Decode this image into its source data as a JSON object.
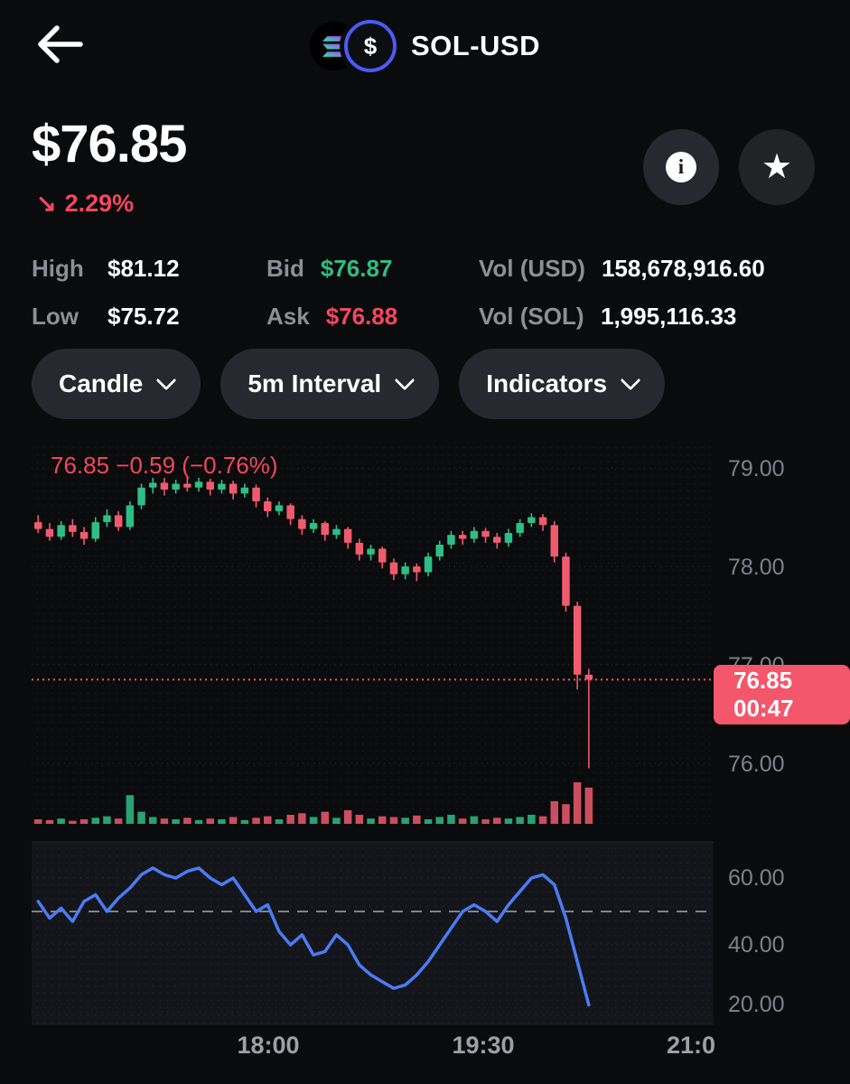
{
  "colors": {
    "background": "#0a0b0d",
    "green": "#2ebd85",
    "red": "#ef5b6d",
    "accent_red": "#f4475f",
    "tag_bg": "#f4566b",
    "rsi_line": "#4b7bf5",
    "pill_bg": "#26292f"
  },
  "header": {
    "title": "SOL-USD",
    "dollar_glyph": "$"
  },
  "price_section": {
    "price": "$76.85",
    "change": "2.29%",
    "change_arrow": "↘",
    "info_glyph": "i",
    "star_glyph": "★"
  },
  "stats": {
    "rows": [
      {
        "c1l": "High",
        "c1v": "$81.12",
        "c2l": "Bid",
        "c2v": "$76.87",
        "c3l": "Vol (USD)",
        "c3v": "158,678,916.60"
      },
      {
        "c1l": "Low",
        "c1v": "$75.72",
        "c2l": "Ask",
        "c2v": "$76.88",
        "c3l": "Vol (SOL)",
        "c3v": "1,995,116.33"
      }
    ]
  },
  "toolbar": {
    "candle": "Candle",
    "interval": "5m Interval",
    "indicators": "Indicators"
  },
  "chart_data": {
    "type": "candlestick",
    "pair": "SOL-USD",
    "interval": "5m",
    "legend": "76.85 −0.59 (−0.76%)",
    "current_price": 76.85,
    "last_price_label": "76.85",
    "countdown": "00:47",
    "price_axis_ticks": [
      "79.00",
      "78.00",
      "77.00",
      "76.00"
    ],
    "price_axis_values": [
      79,
      78,
      77,
      76
    ],
    "time_axis_ticks": [
      "18:00",
      "19:30",
      "21:0"
    ],
    "rsi_axis_ticks": [
      "60.00",
      "40.00",
      "20.00"
    ],
    "rsi_axis_values": [
      60,
      40,
      20
    ],
    "rsi_midline": 50,
    "candles": [
      [
        78.45,
        78.52,
        78.34,
        78.38
      ],
      [
        78.38,
        78.44,
        78.26,
        78.3
      ],
      [
        78.3,
        78.46,
        78.27,
        78.42
      ],
      [
        78.42,
        78.48,
        78.3,
        78.35
      ],
      [
        78.35,
        78.4,
        78.22,
        78.28
      ],
      [
        78.28,
        78.5,
        78.25,
        78.45
      ],
      [
        78.45,
        78.58,
        78.4,
        78.52
      ],
      [
        78.52,
        78.56,
        78.36,
        78.4
      ],
      [
        78.4,
        78.66,
        78.37,
        78.62
      ],
      [
        78.62,
        78.84,
        78.58,
        78.8
      ],
      [
        78.8,
        78.9,
        78.74,
        78.85
      ],
      [
        78.85,
        78.9,
        78.72,
        78.78
      ],
      [
        78.78,
        78.88,
        78.74,
        78.84
      ],
      [
        78.84,
        78.92,
        78.76,
        78.8
      ],
      [
        78.8,
        78.9,
        78.76,
        78.86
      ],
      [
        78.86,
        78.89,
        78.72,
        78.78
      ],
      [
        78.78,
        78.88,
        78.74,
        78.84
      ],
      [
        78.84,
        78.87,
        78.68,
        78.74
      ],
      [
        78.74,
        78.84,
        78.7,
        78.8
      ],
      [
        78.8,
        78.83,
        78.6,
        78.66
      ],
      [
        78.66,
        78.7,
        78.5,
        78.56
      ],
      [
        78.56,
        78.66,
        78.52,
        78.62
      ],
      [
        78.62,
        78.64,
        78.42,
        78.48
      ],
      [
        78.48,
        78.52,
        78.32,
        78.38
      ],
      [
        78.38,
        78.48,
        78.34,
        78.44
      ],
      [
        78.44,
        78.46,
        78.26,
        78.32
      ],
      [
        78.32,
        78.42,
        78.28,
        78.38
      ],
      [
        78.38,
        78.4,
        78.18,
        78.24
      ],
      [
        78.24,
        78.28,
        78.06,
        78.12
      ],
      [
        78.12,
        78.22,
        78.06,
        78.18
      ],
      [
        78.18,
        78.2,
        77.98,
        78.04
      ],
      [
        78.04,
        78.08,
        77.86,
        77.92
      ],
      [
        77.92,
        78.04,
        77.87,
        78.0
      ],
      [
        78.0,
        78.03,
        77.85,
        77.94
      ],
      [
        77.94,
        78.14,
        77.9,
        78.1
      ],
      [
        78.1,
        78.26,
        78.06,
        78.22
      ],
      [
        78.22,
        78.36,
        78.18,
        78.32
      ],
      [
        78.32,
        78.36,
        78.22,
        78.28
      ],
      [
        78.28,
        78.4,
        78.24,
        78.36
      ],
      [
        78.36,
        78.39,
        78.24,
        78.3
      ],
      [
        78.3,
        78.34,
        78.18,
        78.24
      ],
      [
        78.24,
        78.38,
        78.2,
        78.34
      ],
      [
        78.34,
        78.48,
        78.3,
        78.44
      ],
      [
        78.44,
        78.54,
        78.4,
        78.5
      ],
      [
        78.5,
        78.53,
        78.36,
        78.42
      ],
      [
        78.42,
        78.46,
        78.04,
        78.1
      ],
      [
        78.1,
        78.14,
        77.54,
        77.6
      ],
      [
        77.6,
        77.64,
        76.75,
        76.9
      ],
      [
        76.9,
        76.96,
        75.95,
        76.85
      ]
    ],
    "volumes": [
      6,
      5,
      7,
      4,
      6,
      8,
      10,
      7,
      38,
      16,
      9,
      7,
      6,
      8,
      5,
      7,
      6,
      9,
      5,
      8,
      10,
      6,
      12,
      14,
      9,
      16,
      8,
      18,
      12,
      7,
      10,
      9,
      8,
      11,
      6,
      9,
      12,
      7,
      10,
      6,
      8,
      7,
      9,
      12,
      10,
      30,
      26,
      55,
      48
    ],
    "rsi": [
      53,
      48,
      51,
      47,
      53,
      55,
      50,
      54,
      57,
      61,
      63,
      61,
      60,
      62,
      63,
      60,
      58,
      60,
      55,
      50,
      52,
      44,
      40,
      43,
      37,
      38,
      43,
      40,
      34,
      31,
      29,
      27,
      28,
      31,
      35,
      40,
      45,
      50,
      52,
      50,
      47,
      52,
      56,
      60,
      61,
      58,
      48,
      35,
      22
    ]
  }
}
